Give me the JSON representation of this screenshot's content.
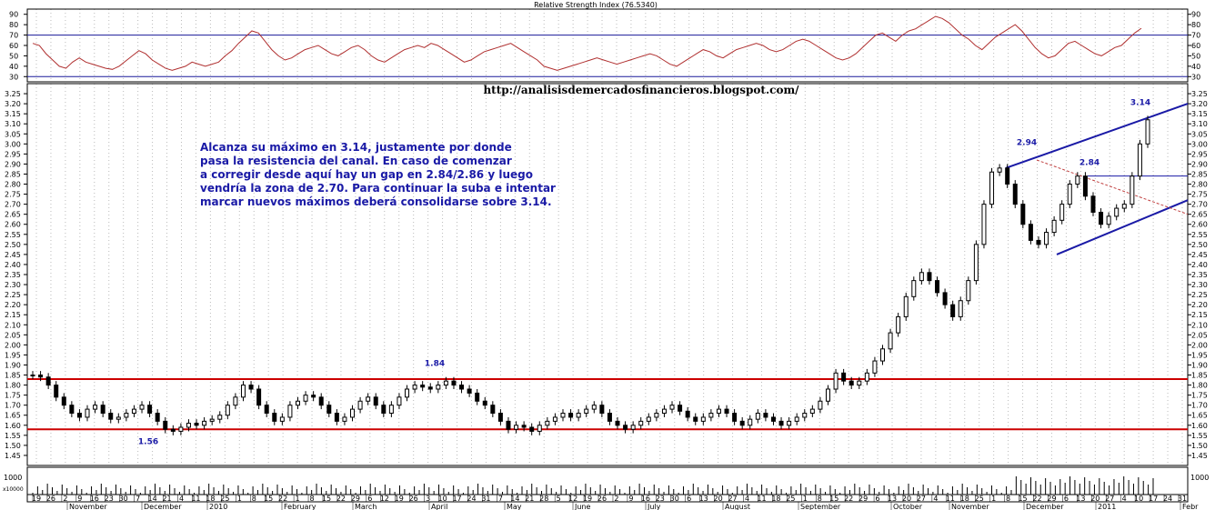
{
  "chart_data": [
    {
      "type": "line",
      "panel": "rsi",
      "title": "Relative Strength Index (76.5340)",
      "ylim": [
        25,
        95
      ],
      "yticks": [
        30,
        40,
        50,
        60,
        70,
        80,
        90
      ],
      "reference_line": 70,
      "series": [
        {
          "values": [
            62,
            60,
            52,
            46,
            40,
            38,
            44,
            48,
            44,
            42,
            40,
            38,
            37,
            40,
            45,
            50,
            55,
            52,
            46,
            42,
            38,
            36,
            38,
            40,
            44,
            42,
            40,
            42,
            44,
            50,
            55,
            62,
            68,
            74,
            72,
            64,
            56,
            50,
            46,
            48,
            52,
            56,
            58,
            60,
            56,
            52,
            50,
            54,
            58,
            60,
            56,
            50,
            46,
            44,
            48,
            52,
            56,
            58,
            60,
            58,
            62,
            60,
            56,
            52,
            48,
            44,
            46,
            50,
            54,
            56,
            58,
            60,
            62,
            58,
            54,
            50,
            46,
            40,
            38,
            36,
            38,
            40,
            42,
            44,
            46,
            48,
            46,
            44,
            42,
            44,
            46,
            48,
            50,
            52,
            50,
            46,
            42,
            40,
            44,
            48,
            52,
            56,
            54,
            50,
            48,
            52,
            56,
            58,
            60,
            62,
            60,
            56,
            54,
            56,
            60,
            64,
            66,
            64,
            60,
            56,
            52,
            48,
            46,
            48,
            52,
            58,
            64,
            70,
            72,
            68,
            64,
            70,
            74,
            76,
            80,
            84,
            88,
            86,
            82,
            76,
            70,
            66,
            60,
            56,
            62,
            68,
            72,
            76,
            80,
            74,
            66,
            58,
            52,
            48,
            50,
            56,
            62,
            64,
            60,
            56,
            52,
            50,
            54,
            58,
            60,
            66,
            72,
            76.53
          ]
        }
      ]
    },
    {
      "type": "candlestick",
      "panel": "price",
      "ylim": [
        1.4,
        3.3
      ],
      "yticks": [
        1.45,
        1.5,
        1.55,
        1.6,
        1.65,
        1.7,
        1.75,
        1.8,
        1.85,
        1.9,
        1.95,
        2.0,
        2.05,
        2.1,
        2.15,
        2.2,
        2.25,
        2.3,
        2.35,
        2.4,
        2.45,
        2.5,
        2.55,
        2.6,
        2.65,
        2.7,
        2.75,
        2.8,
        2.85,
        2.9,
        2.95,
        3.0,
        3.05,
        3.1,
        3.15,
        3.2,
        3.25
      ],
      "series": [
        {
          "name": "close",
          "values": [
            1.85,
            1.84,
            1.8,
            1.74,
            1.7,
            1.66,
            1.64,
            1.68,
            1.7,
            1.66,
            1.63,
            1.64,
            1.66,
            1.68,
            1.7,
            1.66,
            1.62,
            1.58,
            1.57,
            1.59,
            1.61,
            1.6,
            1.62,
            1.63,
            1.65,
            1.7,
            1.74,
            1.8,
            1.78,
            1.7,
            1.66,
            1.62,
            1.64,
            1.7,
            1.72,
            1.75,
            1.74,
            1.7,
            1.66,
            1.62,
            1.64,
            1.68,
            1.72,
            1.74,
            1.7,
            1.66,
            1.7,
            1.74,
            1.78,
            1.8,
            1.79,
            1.78,
            1.8,
            1.82,
            1.8,
            1.78,
            1.76,
            1.72,
            1.7,
            1.66,
            1.62,
            1.58,
            1.6,
            1.59,
            1.57,
            1.6,
            1.62,
            1.64,
            1.66,
            1.64,
            1.66,
            1.68,
            1.7,
            1.66,
            1.62,
            1.6,
            1.58,
            1.6,
            1.62,
            1.64,
            1.66,
            1.68,
            1.7,
            1.67,
            1.64,
            1.62,
            1.64,
            1.66,
            1.68,
            1.66,
            1.62,
            1.6,
            1.63,
            1.66,
            1.64,
            1.62,
            1.6,
            1.62,
            1.64,
            1.66,
            1.68,
            1.72,
            1.78,
            1.86,
            1.82,
            1.8,
            1.82,
            1.86,
            1.92,
            1.98,
            2.06,
            2.14,
            2.24,
            2.32,
            2.36,
            2.32,
            2.26,
            2.2,
            2.14,
            2.22,
            2.32,
            2.5,
            2.7,
            2.86,
            2.88,
            2.8,
            2.7,
            2.6,
            2.52,
            2.5,
            2.56,
            2.62,
            2.7,
            2.8,
            2.84,
            2.74,
            2.66,
            2.6,
            2.64,
            2.68,
            2.7,
            2.84,
            3.0,
            3.12
          ],
          "annotations": [
            {
              "label": "1.56",
              "value": 1.56
            },
            {
              "label": "1.84",
              "value": 1.84
            },
            {
              "label": "2.94",
              "value": 2.94
            },
            {
              "label": "2.84",
              "value": 2.84
            },
            {
              "label": "3.14",
              "value": 3.14
            }
          ],
          "horizontal_lines": [
            1.83,
            1.58,
            2.84
          ],
          "trend_channel": {
            "upper": [
              2.88,
              3.2
            ],
            "lower": [
              2.45,
              2.72
            ]
          }
        }
      ]
    },
    {
      "type": "bar",
      "panel": "volume",
      "ytick_label": "1000",
      "scale_label": "x10000"
    }
  ],
  "url_text": "http://analisisdemercadosfinancieros.blogspot.com/",
  "note_lines": [
    "Alcanza su máximo en 3.14, justamente por donde",
    "pasa la resistencia del canal. En caso de comenzar",
    "a corregir desde aquí hay un gap en 2.84/2.86 y luego",
    "vendría la zona de 2.70. Para continuar la suba e intentar",
    "marcar nuevos máximos deberá consolidarse sobre 3.14."
  ],
  "x_axis": {
    "dates": [
      "19",
      "26",
      "2",
      "9",
      "16",
      "23",
      "30",
      "7",
      "14",
      "21",
      "4",
      "11",
      "18",
      "25",
      "1",
      "8",
      "15",
      "22",
      "1",
      "8",
      "15",
      "22",
      "29",
      "6",
      "12",
      "19",
      "26",
      "3",
      "10",
      "17",
      "24",
      "31",
      "7",
      "14",
      "21",
      "28",
      "5",
      "12",
      "19",
      "26",
      "2",
      "9",
      "16",
      "23",
      "30",
      "6",
      "13",
      "20",
      "27",
      "4",
      "11",
      "18",
      "25",
      "1",
      "8",
      "15",
      "22",
      "29",
      "6",
      "13",
      "20",
      "27",
      "4",
      "11",
      "18",
      "25",
      "1",
      "8",
      "15",
      "22",
      "29",
      "6",
      "13",
      "20",
      "27",
      "4",
      "10",
      "17",
      "24",
      "31"
    ],
    "months": [
      "November",
      "December",
      "2010",
      "February",
      "March",
      "April",
      "May",
      "June",
      "July",
      "August",
      "September",
      "October",
      "November",
      "December",
      "2011",
      "Febr"
    ]
  },
  "colors": {
    "rsi_line": "#b03030",
    "ref_line": "#1a1a9a",
    "red_line": "#cc0000",
    "channel": "#1a1aa6",
    "dashed_trend": "#c04040",
    "text_blue": "#1a1aa6"
  }
}
